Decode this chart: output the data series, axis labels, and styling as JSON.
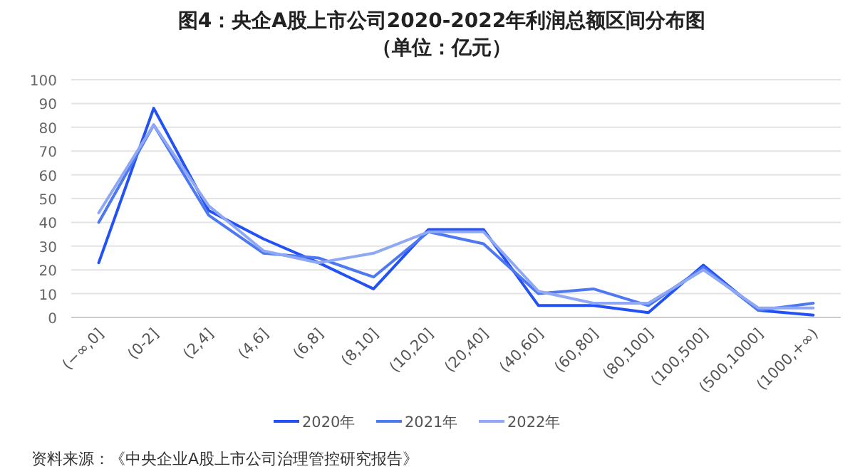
{
  "chart_data": {
    "type": "line",
    "title": "图4：央企A股上市公司2020-2022年利润总额区间分布图（单位：亿元）",
    "categories": [
      "(−∞,0]",
      "(0-2]",
      "(2,4]",
      "(4,6]",
      "(6,8]",
      "(8,10]",
      "(10,20]",
      "(20,40]",
      "(40,60]",
      "(60,80]",
      "(80,100]",
      "(100,500]",
      "(500,1000]",
      "(1000,+∞)"
    ],
    "series": [
      {
        "name": "2020年",
        "color": "#2251f5",
        "values": [
          23,
          88,
          45,
          33,
          23,
          12,
          37,
          37,
          5,
          5,
          2,
          22,
          3,
          1
        ]
      },
      {
        "name": "2021年",
        "color": "#4d78f2",
        "values": [
          40,
          81,
          43,
          27,
          25,
          17,
          36,
          31,
          10,
          12,
          5,
          21,
          3,
          6
        ]
      },
      {
        "name": "2022年",
        "color": "#8ea8f5",
        "values": [
          44,
          81,
          47,
          28,
          23,
          27,
          36,
          36,
          11,
          6,
          6,
          20,
          4,
          4
        ]
      }
    ],
    "ylim": [
      0,
      100
    ],
    "yticks": [
      0,
      10,
      20,
      30,
      40,
      50,
      60,
      70,
      80,
      90,
      100
    ],
    "grid": "y",
    "legend": "bottom",
    "marker": "none",
    "line_style": "solid",
    "annotations": [
      "资料来源：《中央企业A股上市公司治理管控研究报告》"
    ]
  }
}
